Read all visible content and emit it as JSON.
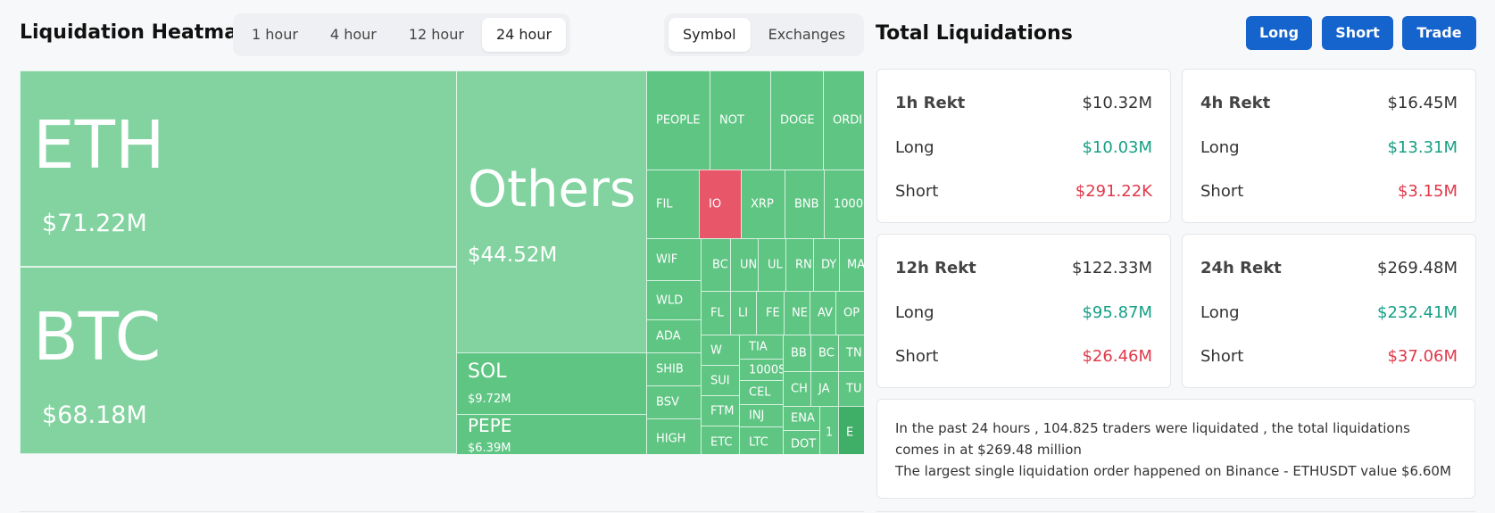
{
  "heatmap": {
    "title": "Liquidation Heatmap",
    "time_tabs": [
      "1 hour",
      "4 hour",
      "12 hour",
      "24 hour"
    ],
    "active_time_tab": "24 hour",
    "view_tabs": [
      "Symbol",
      "Exchanges"
    ],
    "active_view_tab": "Symbol",
    "big_tiles": {
      "eth": {
        "symbol": "ETH",
        "value": "$71.22M"
      },
      "btc": {
        "symbol": "BTC",
        "value": "$68.18M"
      },
      "others": {
        "symbol": "Others",
        "value": "$44.52M"
      },
      "sol": {
        "symbol": "SOL",
        "value": "$9.72M"
      },
      "pepe": {
        "symbol": "PEPE",
        "value": "$6.39M"
      }
    },
    "small_tiles": [
      "PEOPLE",
      "NOT",
      "DOGE",
      "ORDI",
      "FIL",
      "IO",
      "XRP",
      "BNB",
      "1000",
      "WIF",
      "BC",
      "UN",
      "UL",
      "RN",
      "DY",
      "MA",
      "WLD",
      "FL",
      "LI",
      "FE",
      "NE",
      "AV",
      "OP",
      "ADA",
      "W",
      "TIA",
      "BB",
      "BC",
      "TN",
      "SHIB",
      "SUI",
      "1000S",
      "CH",
      "JA",
      "TU",
      "BSV",
      "FTM",
      "CEL",
      "INJ",
      "ENA",
      "HIGH",
      "ETC",
      "LTC",
      "DOT",
      "1",
      "E"
    ],
    "colors": {
      "light": "#82d3a0",
      "mid": "#5fc583",
      "dark": "#3fae67",
      "red": "#e8566a"
    }
  },
  "totals": {
    "title": "Total Liquidations",
    "buttons": {
      "long": "Long",
      "short": "Short",
      "trade": "Trade"
    },
    "cards": [
      {
        "head": "1h Rekt",
        "total": "$10.32M",
        "long_label": "Long",
        "long": "$10.03M",
        "short_label": "Short",
        "short": "$291.22K"
      },
      {
        "head": "4h Rekt",
        "total": "$16.45M",
        "long_label": "Long",
        "long": "$13.31M",
        "short_label": "Short",
        "short": "$3.15M"
      },
      {
        "head": "12h Rekt",
        "total": "$122.33M",
        "long_label": "Long",
        "long": "$95.87M",
        "short_label": "Short",
        "short": "$26.46M"
      },
      {
        "head": "24h Rekt",
        "total": "$269.48M",
        "long_label": "Long",
        "long": "$232.41M",
        "short_label": "Short",
        "short": "$37.06M"
      }
    ],
    "summary_line1": "In the past 24 hours , 104.825 traders were liquidated , the total liquidations comes in at $269.48 million",
    "summary_line2": "The largest single liquidation order happened on Binance - ETHUSDT value $6.60M"
  },
  "accent_color": "#1563cc",
  "positive_color": "#16a085",
  "negative_color": "#e0394a"
}
